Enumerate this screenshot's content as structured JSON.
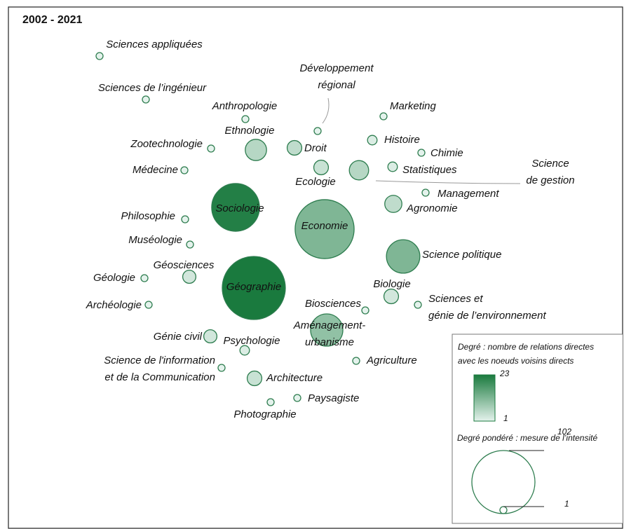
{
  "title": "2002 - 2021",
  "nodes": [
    {
      "label": [
        "Sciences appliquées"
      ],
      "degree": 1,
      "weighted_degree": 1
    },
    {
      "label": [
        "Sciences de l’ingénieur"
      ],
      "degree": 1,
      "weighted_degree": 1
    },
    {
      "label": [
        "Anthropologie"
      ],
      "degree": 1,
      "weighted_degree": 1
    },
    {
      "label": [
        "Ethnologie"
      ],
      "degree": 6,
      "weighted_degree": 11
    },
    {
      "label": [
        "Zootechnologie"
      ],
      "degree": 1,
      "weighted_degree": 1
    },
    {
      "label": [
        "Médecine"
      ],
      "degree": 1,
      "weighted_degree": 1
    },
    {
      "label": [
        "Droit"
      ],
      "degree": 5,
      "weighted_degree": 5
    },
    {
      "label": [
        "Développement",
        "régional"
      ],
      "degree": 1,
      "weighted_degree": 1
    },
    {
      "label": [
        "Ecologie"
      ],
      "degree": 4,
      "weighted_degree": 5
    },
    {
      "label": [
        "Marketing"
      ],
      "degree": 1,
      "weighted_degree": 1
    },
    {
      "label": [
        "Histoire"
      ],
      "degree": 2,
      "weighted_degree": 2
    },
    {
      "label": [
        "Chimie"
      ],
      "degree": 1,
      "weighted_degree": 1
    },
    {
      "label": [
        "Statistiques"
      ],
      "degree": 2,
      "weighted_degree": 2
    },
    {
      "label": [
        "Science",
        "de gestion"
      ],
      "degree": 6,
      "weighted_degree": 9
    },
    {
      "label": [
        "Management"
      ],
      "degree": 1,
      "weighted_degree": 1
    },
    {
      "label": [
        "Agronomie"
      ],
      "degree": 5,
      "weighted_degree": 7
    },
    {
      "label": [
        "Sociologie"
      ],
      "degree": 22,
      "weighted_degree": 58
    },
    {
      "label": [
        "Economie"
      ],
      "degree": 12,
      "weighted_degree": 89
    },
    {
      "label": [
        "Philosophie"
      ],
      "degree": 1,
      "weighted_degree": 1
    },
    {
      "label": [
        "Muséologie"
      ],
      "degree": 1,
      "weighted_degree": 1
    },
    {
      "label": [
        "Science politique"
      ],
      "degree": 12,
      "weighted_degree": 28
    },
    {
      "label": [
        "Géosciences"
      ],
      "degree": 3,
      "weighted_degree": 4
    },
    {
      "label": [
        "Géologie"
      ],
      "degree": 1,
      "weighted_degree": 1
    },
    {
      "label": [
        "Géographie"
      ],
      "degree": 23,
      "weighted_degree": 102
    },
    {
      "label": [
        "Biologie"
      ],
      "degree": 3,
      "weighted_degree": 5
    },
    {
      "label": [
        "Archéologie"
      ],
      "degree": 1,
      "weighted_degree": 1
    },
    {
      "label": [
        "Sciences et",
        "génie de l’environnement"
      ],
      "degree": 1,
      "weighted_degree": 1
    },
    {
      "label": [
        "Biosciences"
      ],
      "degree": 1,
      "weighted_degree": 1
    },
    {
      "label": [
        "Aménagement-",
        "urbanisme"
      ],
      "degree": 10,
      "weighted_degree": 26
    },
    {
      "label": [
        "Génie civil"
      ],
      "degree": 3,
      "weighted_degree": 4
    },
    {
      "label": [
        "Psychologie"
      ],
      "degree": 2,
      "weighted_degree": 2
    },
    {
      "label": [
        "Science de l'information",
        "et de la Communication"
      ],
      "degree": 1,
      "weighted_degree": 1
    },
    {
      "label": [
        "Agriculture"
      ],
      "degree": 1,
      "weighted_degree": 1
    },
    {
      "label": [
        "Architecture"
      ],
      "degree": 4,
      "weighted_degree": 5
    },
    {
      "label": [
        "Paysagiste"
      ],
      "degree": 1,
      "weighted_degree": 1
    },
    {
      "label": [
        "Photographie"
      ],
      "degree": 1,
      "weighted_degree": 1
    }
  ],
  "legend": {
    "degree_title": [
      "Degré : nombre de relations directes",
      "avec les noeuds voisins directs"
    ],
    "degree_max": 23,
    "degree_min": 1,
    "weighted_title": "Degré pondéré : mesure de l’intensité",
    "weighted_max": 102,
    "weighted_min": 1
  }
}
